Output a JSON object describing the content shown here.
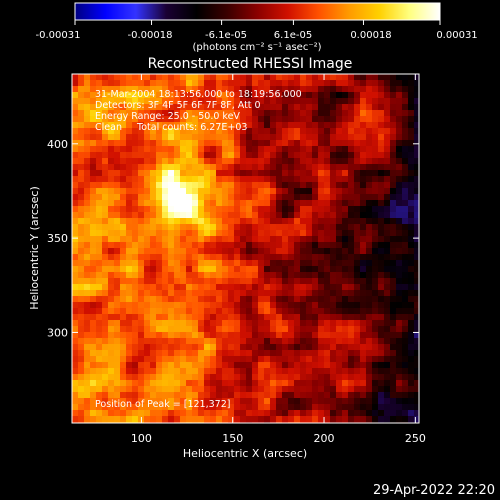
{
  "colorbar": {
    "ticks": [
      "-0.00031",
      "-0.00018",
      "-6.1e-05",
      "6.1e-05",
      "0.00018",
      "0.00031"
    ],
    "tick_values": [
      -0.00031,
      -0.00018,
      -6.1e-05,
      6.1e-05,
      0.00018,
      0.00031
    ],
    "range": [
      -0.00031,
      0.00031
    ],
    "units": "(photons cm⁻² s⁻¹ asec⁻²)",
    "colormap": [
      "#000080",
      "#0000ff",
      "#3333ff",
      "#1a0033",
      "#000000",
      "#3a0000",
      "#8b0000",
      "#d01000",
      "#ff5000",
      "#ff9a00",
      "#ffd000",
      "#ffff80",
      "#ffffff"
    ]
  },
  "chart_data": {
    "type": "heatmap",
    "title": "Reconstructed RHESSI Image",
    "xlabel": "Heliocentric X (arcsec)",
    "ylabel": "Heliocentric Y (arcsec)",
    "xlim": [
      62,
      252
    ],
    "ylim": [
      252,
      437
    ],
    "xticks": [
      100,
      150,
      200,
      250
    ],
    "yticks": [
      300,
      350,
      400
    ],
    "peak": {
      "x": 121,
      "y": 372
    },
    "annotations": [
      "31-Mar-2004 18:13:56.000 to 18:19:56.000",
      "Detectors: 3F 4F 5F 6F 7F 8F, Att 0",
      "Energy Range: 25.0 - 50.0 keV",
      "Clean     Total counts: 6.27E+03"
    ],
    "peak_label": "Position of Peak = [121,372]"
  },
  "footer": {
    "timestamp": "29-Apr-2022 22:20"
  }
}
